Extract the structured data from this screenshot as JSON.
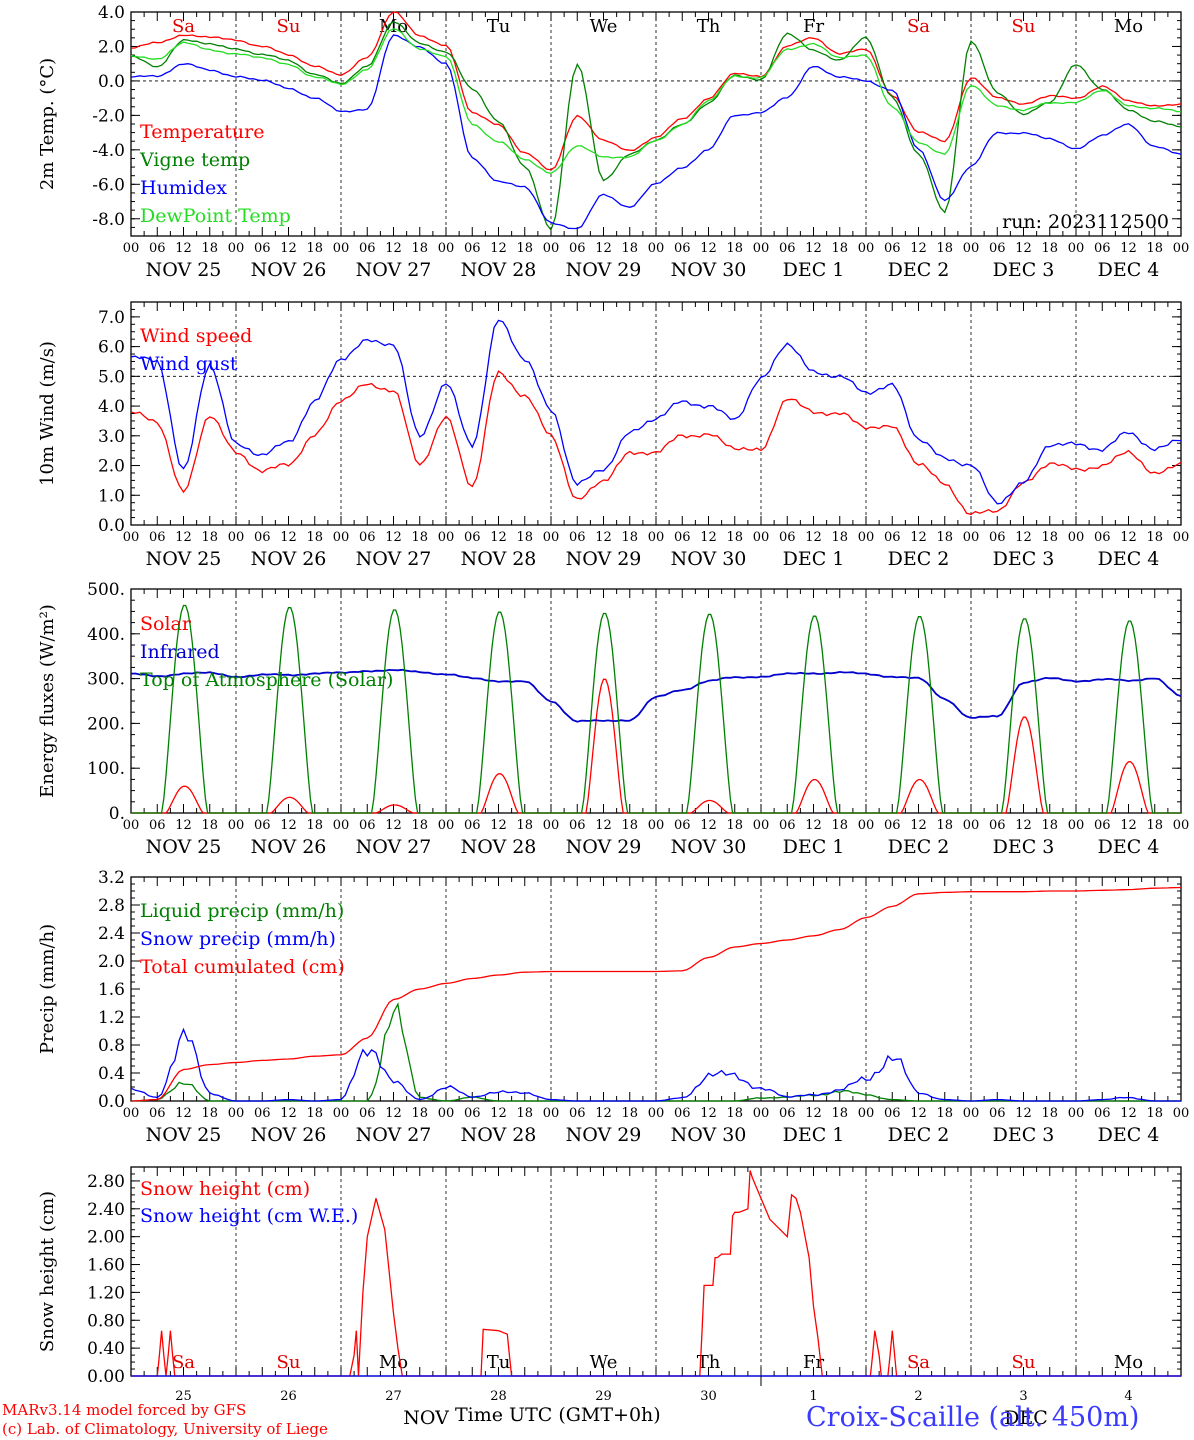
{
  "run_label": "run: 2023112500",
  "x_axis": {
    "hour_ticks": [
      "00",
      "06",
      "12",
      "18"
    ],
    "end_tick": "00",
    "date_labels": [
      "NOV 25",
      "NOV 26",
      "NOV 27",
      "NOV 28",
      "NOV 29",
      "NOV 30",
      "DEC  1",
      "DEC  2",
      "DEC  3",
      "DEC  4"
    ],
    "weekdays": [
      "Sa",
      "Su",
      "Mo",
      "Tu",
      "We",
      "Th",
      "Fr",
      "Sa",
      "Su",
      "Mo"
    ],
    "weekend_color": "#e00000",
    "weekday_color": "#000000",
    "bottom_days": [
      "25",
      "26",
      "27",
      "28",
      "29",
      "30",
      "1",
      "2",
      "3",
      "4"
    ],
    "bottom_month_left": "NOV",
    "bottom_month_right": "DEC",
    "title": "Time UTC (GMT+0h)"
  },
  "footer": {
    "model": "MARv3.14 model forced by GFS",
    "copyright": "(c) Lab. of Climatology, University of Liege",
    "station": "Croix-Scaille (alt. 450m)"
  },
  "colors": {
    "red": "#ff0000",
    "green": "#008000",
    "blue": "#0000ff",
    "lightgreen": "#22dd22",
    "navy": "#0000cc"
  },
  "chart_data": [
    {
      "type": "line",
      "id": "temperature",
      "ylabel": "2m Temp. (°C)",
      "ylim": [
        -9,
        4
      ],
      "yticks": [
        "4.0",
        "2.0",
        "0.0",
        "-2.0",
        "-4.0",
        "-6.0",
        "-8.0"
      ],
      "ytick_values": [
        4,
        2,
        0,
        -2,
        -4,
        -6,
        -8
      ],
      "hline": 0,
      "x": [
        0,
        6,
        12,
        18,
        24,
        30,
        36,
        42,
        48,
        54,
        60,
        66,
        72,
        78,
        84,
        90,
        96,
        102,
        108,
        114,
        120,
        126,
        132,
        138,
        144,
        150,
        156,
        162,
        168,
        174,
        180,
        186,
        192,
        198,
        204,
        210,
        216,
        222,
        228,
        234,
        240
      ],
      "series": [
        {
          "name": "Temperature",
          "color": "red",
          "values": [
            1.9,
            2.2,
            2.7,
            2.5,
            2.4,
            2.0,
            1.5,
            0.9,
            0.3,
            1.4,
            4.0,
            2.6,
            2.1,
            -1.9,
            -2.5,
            -4.2,
            -5.2,
            -2.0,
            -3.5,
            -4.0,
            -3.3,
            -2.2,
            -1.0,
            0.4,
            0.3,
            2.0,
            2.5,
            1.6,
            1.8,
            -0.8,
            -3.0,
            -3.5,
            0.2,
            -1.0,
            -1.3,
            -0.9,
            -1.0,
            -0.3,
            -1.2,
            -1.4,
            -1.4
          ]
        },
        {
          "name": "Vigne temp",
          "color": "green",
          "values": [
            1.4,
            0.8,
            2.4,
            2.1,
            1.9,
            1.5,
            1.2,
            0.4,
            -0.2,
            0.9,
            3.4,
            2.2,
            1.7,
            -0.5,
            -2.3,
            -5.0,
            -8.6,
            1.0,
            -5.8,
            -4.2,
            -3.5,
            -2.5,
            -1.3,
            0.3,
            0.1,
            2.7,
            1.8,
            1.2,
            2.5,
            -0.9,
            -4.3,
            -7.6,
            2.3,
            -0.7,
            -1.9,
            -1.3,
            1.0,
            -0.5,
            -1.7,
            -2.3,
            -2.7
          ]
        },
        {
          "name": "Humidex",
          "color": "blue",
          "values": [
            0.2,
            0.3,
            1.0,
            0.6,
            0.3,
            0.0,
            -0.4,
            -1.0,
            -1.8,
            -1.6,
            2.6,
            2.0,
            1.0,
            -4.5,
            -5.8,
            -6.2,
            -8.2,
            -8.6,
            -6.6,
            -7.3,
            -6.0,
            -5.0,
            -4.0,
            -2.0,
            -1.8,
            -1.0,
            0.9,
            0.2,
            0.0,
            -0.5,
            -4.0,
            -6.9,
            -5.0,
            -3.0,
            -3.0,
            -3.4,
            -3.9,
            -3.2,
            -2.5,
            -3.8,
            -4.3
          ]
        },
        {
          "name": "DewPoint Temp",
          "color": "lightgreen",
          "values": [
            1.4,
            1.3,
            2.2,
            1.8,
            1.6,
            1.3,
            1.0,
            0.2,
            -0.2,
            0.7,
            3.0,
            1.9,
            1.4,
            -2.5,
            -3.5,
            -4.6,
            -5.3,
            -3.8,
            -4.4,
            -4.4,
            -3.5,
            -2.5,
            -1.2,
            0.3,
            0.2,
            1.8,
            2.2,
            1.3,
            1.5,
            -1.5,
            -3.6,
            -4.2,
            -0.3,
            -1.4,
            -1.7,
            -1.3,
            -1.2,
            -0.6,
            -1.4,
            -1.6,
            -1.8
          ]
        }
      ]
    },
    {
      "type": "line",
      "id": "wind",
      "ylabel": "10m Wind (m/s)",
      "ylim": [
        0,
        7.5
      ],
      "yticks": [
        "7.0",
        "6.0",
        "5.0",
        "4.0",
        "3.0",
        "2.0",
        "1.0",
        "0.0"
      ],
      "ytick_values": [
        7,
        6,
        5,
        4,
        3,
        2,
        1,
        0
      ],
      "hline": 5,
      "x": [
        0,
        6,
        12,
        18,
        24,
        30,
        36,
        42,
        48,
        54,
        60,
        66,
        72,
        78,
        84,
        90,
        96,
        102,
        108,
        114,
        120,
        126,
        132,
        138,
        144,
        150,
        156,
        162,
        168,
        174,
        180,
        186,
        192,
        198,
        204,
        210,
        216,
        222,
        228,
        234,
        240
      ],
      "series": [
        {
          "name": "Wind speed",
          "color": "red",
          "values": [
            3.8,
            3.4,
            1.2,
            3.6,
            2.5,
            1.8,
            2.0,
            3.1,
            4.1,
            4.8,
            4.5,
            2.0,
            3.7,
            1.2,
            5.2,
            4.3,
            3.0,
            0.9,
            1.4,
            2.5,
            2.4,
            3.0,
            3.1,
            2.5,
            2.6,
            4.2,
            3.8,
            3.8,
            3.2,
            3.4,
            2.0,
            1.4,
            0.4,
            0.4,
            1.5,
            2.0,
            1.9,
            2.0,
            2.4,
            1.8,
            2.0
          ]
        },
        {
          "name": "Wind gust",
          "color": "blue",
          "values": [
            5.6,
            5.5,
            1.9,
            5.3,
            2.8,
            2.3,
            2.8,
            4.2,
            5.5,
            6.3,
            6.0,
            3.0,
            4.8,
            2.6,
            7.0,
            5.5,
            3.9,
            1.4,
            1.8,
            3.2,
            3.5,
            4.2,
            4.0,
            3.5,
            5.0,
            6.0,
            5.2,
            5.0,
            4.4,
            4.8,
            2.8,
            2.3,
            2.0,
            0.7,
            1.5,
            2.6,
            2.8,
            2.5,
            3.1,
            2.6,
            2.8
          ]
        }
      ]
    },
    {
      "type": "line",
      "id": "energy",
      "ylabel": "Energy fluxes (W/m²)",
      "ylim": [
        0,
        500
      ],
      "yticks": [
        "500.",
        "400.",
        "300.",
        "200.",
        "100.",
        "0."
      ],
      "ytick_values": [
        500,
        400,
        300,
        200,
        100,
        0
      ],
      "series": [
        {
          "name": "Solar",
          "color": "red",
          "peaks": [
            60,
            35,
            18,
            88,
            300,
            28,
            75,
            75,
            215,
            115
          ]
        },
        {
          "name": "Infrared",
          "color": "navy",
          "x": [
            0,
            6,
            12,
            18,
            24,
            30,
            36,
            42,
            48,
            54,
            60,
            66,
            72,
            78,
            84,
            90,
            96,
            102,
            108,
            114,
            120,
            126,
            132,
            138,
            144,
            150,
            156,
            162,
            168,
            174,
            180,
            186,
            192,
            198,
            204,
            210,
            216,
            222,
            228,
            234,
            240
          ],
          "values": [
            310,
            305,
            312,
            312,
            305,
            308,
            308,
            312,
            312,
            318,
            318,
            315,
            310,
            300,
            295,
            293,
            250,
            205,
            205,
            208,
            258,
            275,
            295,
            302,
            305,
            310,
            312,
            314,
            310,
            305,
            300,
            255,
            212,
            215,
            292,
            300,
            295,
            298,
            295,
            302,
            260
          ]
        },
        {
          "name": "Top of Atmosphere (Solar)",
          "color": "green",
          "peaks": [
            465,
            460,
            455,
            450,
            447,
            445,
            441,
            440,
            435,
            430
          ]
        }
      ]
    },
    {
      "type": "line",
      "id": "precip",
      "ylabel": "Precip (mm/h)",
      "ylim": [
        0,
        3.2
      ],
      "yticks": [
        "3.2",
        "2.8",
        "2.4",
        "2.0",
        "1.6",
        "1.2",
        "0.8",
        "0.4",
        "0.0"
      ],
      "ytick_values": [
        3.2,
        2.8,
        2.4,
        2.0,
        1.6,
        1.2,
        0.8,
        0.4,
        0.0
      ],
      "x": [
        0,
        6,
        12,
        18,
        24,
        30,
        36,
        42,
        48,
        54,
        60,
        66,
        72,
        78,
        84,
        90,
        96,
        102,
        108,
        114,
        120,
        126,
        132,
        138,
        144,
        150,
        156,
        162,
        168,
        174,
        180,
        186,
        192,
        198,
        204,
        210,
        216,
        222,
        228,
        234,
        240
      ],
      "series": [
        {
          "name": "Liquid precip (mm/h)",
          "color": "green",
          "values": [
            0.0,
            0.02,
            0.3,
            0.0,
            0.0,
            0.0,
            0.0,
            0.0,
            0.0,
            0.0,
            1.25,
            0.05,
            0.0,
            0.05,
            0.0,
            0.0,
            0.0,
            0.0,
            0.0,
            0.0,
            0.0,
            0.0,
            0.0,
            0.0,
            0.05,
            0.05,
            0.08,
            0.15,
            0.08,
            0.02,
            0.0,
            0.0,
            0.0,
            0.0,
            0.0,
            0.0,
            0.0,
            0.0,
            0.0,
            0.0,
            0.0
          ]
        },
        {
          "name": "Snow precip (mm/h)",
          "color": "blue",
          "values": [
            0.15,
            0.05,
            1.0,
            0.1,
            0.0,
            0.0,
            0.02,
            0.0,
            0.02,
            0.85,
            0.25,
            0.02,
            0.2,
            0.05,
            0.15,
            0.1,
            0.02,
            0.0,
            0.0,
            0.0,
            0.0,
            0.05,
            0.35,
            0.35,
            0.2,
            0.05,
            0.1,
            0.15,
            0.3,
            0.7,
            0.1,
            0.02,
            0.0,
            0.02,
            0.0,
            0.0,
            0.0,
            0.02,
            0.05,
            0.0,
            0.0
          ]
        },
        {
          "name": "Total cumulated (cm)",
          "color": "red",
          "values": [
            0.0,
            0.02,
            0.45,
            0.52,
            0.55,
            0.58,
            0.6,
            0.64,
            0.66,
            0.9,
            1.45,
            1.6,
            1.68,
            1.75,
            1.8,
            1.84,
            1.85,
            1.85,
            1.85,
            1.85,
            1.85,
            1.86,
            2.05,
            2.2,
            2.25,
            2.3,
            2.36,
            2.45,
            2.62,
            2.78,
            2.96,
            2.98,
            2.99,
            2.99,
            2.99,
            3.0,
            3.0,
            3.01,
            3.02,
            3.04,
            3.05
          ]
        }
      ]
    },
    {
      "type": "line",
      "id": "snow",
      "ylabel": "Snow height (cm)",
      "ylim": [
        0,
        3.0
      ],
      "yticks": [
        "2.80",
        "2.40",
        "2.00",
        "1.60",
        "1.20",
        "0.80",
        "0.40",
        "0.00"
      ],
      "ytick_values": [
        2.8,
        2.4,
        2.0,
        1.6,
        1.2,
        0.8,
        0.4,
        0.0
      ],
      "series": [
        {
          "name": "Snow height (cm)",
          "color": "red",
          "x": [
            0,
            6,
            6.5,
            7,
            7.5,
            8,
            8.5,
            9,
            9.5,
            10,
            10.5,
            11,
            50,
            51,
            51.5,
            52,
            53,
            54,
            56,
            58,
            60,
            61,
            62,
            63,
            64,
            79,
            80,
            80.5,
            84,
            86,
            86.5,
            87,
            129,
            130,
            130.5,
            131,
            133,
            133.5,
            134,
            135,
            137,
            137.5,
            138,
            139,
            141,
            141.5,
            142,
            143,
            144,
            146,
            150,
            151,
            152,
            153,
            155,
            156,
            157,
            158,
            159,
            160,
            161,
            168,
            169,
            169.5,
            170,
            171,
            171.5,
            172,
            173,
            173.5,
            174,
            175,
            194,
            195,
            214,
            215,
            240
          ],
          "values": [
            0,
            0,
            0.3,
            0.65,
            0.3,
            0,
            0.3,
            0.65,
            0.3,
            0,
            0,
            0,
            0,
            0.3,
            0.65,
            0,
            1.2,
            2.0,
            2.55,
            2.1,
            0.9,
            0.4,
            0,
            0,
            0,
            0,
            0,
            0.67,
            0.65,
            0.6,
            0.3,
            0,
            0,
            0,
            0.6,
            1.3,
            1.3,
            1.7,
            1.7,
            1.75,
            1.75,
            2.3,
            2.35,
            2.35,
            2.4,
            2.95,
            2.85,
            2.7,
            2.55,
            2.25,
            2.0,
            2.6,
            2.55,
            2.35,
            1.7,
            1.0,
            0.55,
            0,
            0,
            0,
            0,
            0,
            0,
            0.3,
            0.65,
            0.3,
            0,
            0,
            0,
            0.3,
            0.65,
            0,
            0,
            0,
            0,
            0,
            0
          ]
        },
        {
          "name": "Snow height (cm W.E.)",
          "color": "blue",
          "x": [
            0,
            240
          ],
          "values": [
            0,
            0
          ]
        }
      ]
    }
  ]
}
